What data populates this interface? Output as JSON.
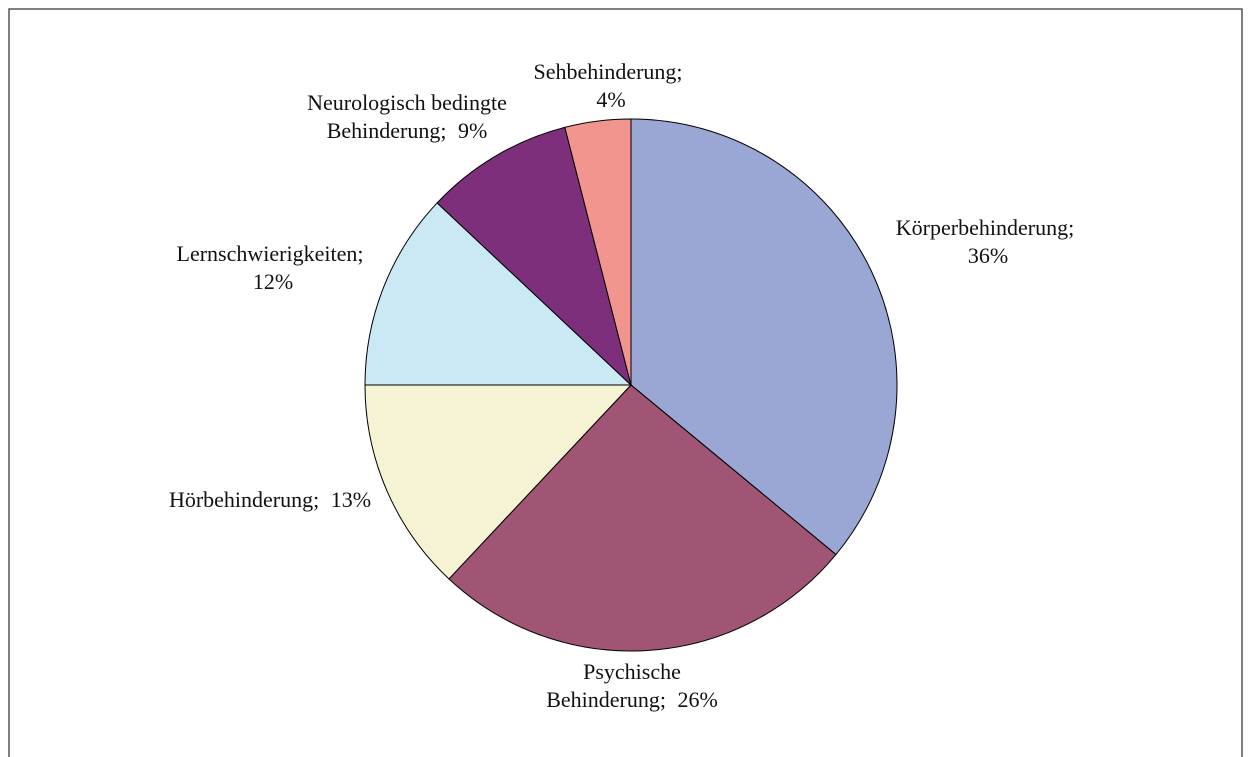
{
  "chart_data": {
    "type": "pie",
    "categories": [
      "Körperbehinderung;",
      "Psychische Behinderung;",
      "Hörbehinderung;",
      "Lernschwierigkeiten;",
      "Neurologisch bedingte Behinderung;",
      "Sehbehinderung;"
    ],
    "values": [
      36,
      26,
      13,
      12,
      9,
      4
    ],
    "value_labels": [
      "36%",
      "26%",
      "13%",
      "12%",
      "9%",
      "4%"
    ],
    "colors": [
      "#9aa6d4",
      "#a15575",
      "#f5f3d4",
      "#cbe9f4",
      "#7e2f7b",
      "#f2958f"
    ]
  }
}
